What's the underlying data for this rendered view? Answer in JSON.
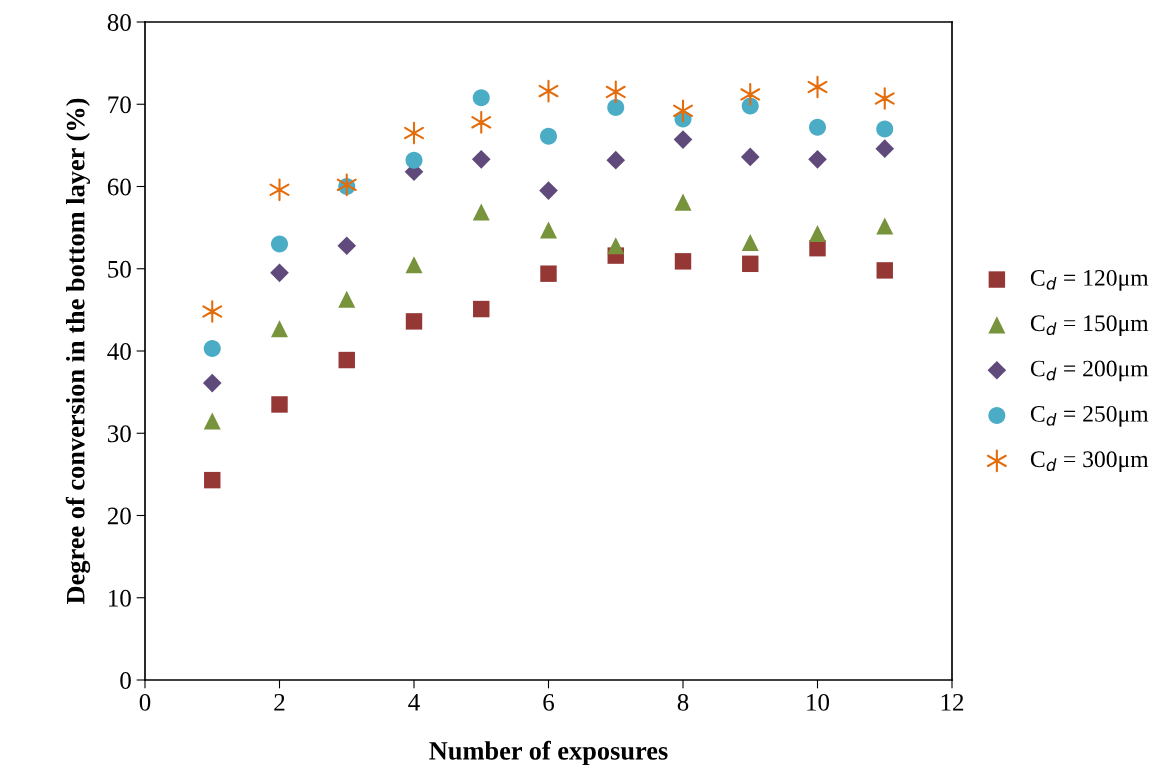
{
  "chart_data": {
    "type": "scatter",
    "xlabel": "Number of exposures",
    "ylabel": "Degree of conversion in the bottom layer (%)",
    "x": [
      1,
      2,
      3,
      4,
      5,
      6,
      7,
      8,
      9,
      10,
      11
    ],
    "xlim": [
      0,
      12
    ],
    "xticks": [
      0,
      2,
      4,
      6,
      8,
      10,
      12
    ],
    "ylim": [
      0,
      80
    ],
    "yticks": [
      0,
      10,
      20,
      30,
      40,
      50,
      60,
      70,
      80
    ],
    "grid": false,
    "legend": "right",
    "series": [
      {
        "name": "C$_{d}$ = 120μm",
        "color": "#953735",
        "marker": "square",
        "values": [
          24.3,
          33.5,
          38.9,
          43.6,
          45.1,
          49.4,
          51.6,
          50.9,
          50.6,
          52.5,
          49.8
        ]
      },
      {
        "name": "C$_{d}$ = 150μm",
        "color": "#77933c",
        "marker": "triangle",
        "values": [
          31.5,
          42.7,
          46.3,
          50.5,
          56.9,
          54.7,
          52.8,
          58.1,
          53.2,
          54.3,
          55.2
        ]
      },
      {
        "name": "C$_{d}$ = 200μm",
        "color": "#604a7b",
        "marker": "diamond",
        "values": [
          36.1,
          49.5,
          52.8,
          61.8,
          63.3,
          59.5,
          63.2,
          65.7,
          63.6,
          63.3,
          64.6
        ]
      },
      {
        "name": "C$_{d}$ = 250μm",
        "color": "#4bacc6",
        "marker": "circle",
        "values": [
          40.3,
          53.0,
          60.0,
          63.2,
          70.8,
          66.1,
          69.6,
          68.2,
          69.8,
          67.2,
          67.0
        ]
      },
      {
        "name": "C$_{d}$ = 300μm",
        "color": "#e46c0a",
        "marker": "cross",
        "values": [
          44.8,
          59.6,
          60.2,
          66.5,
          67.8,
          71.6,
          71.5,
          69.2,
          71.2,
          72.1,
          70.7
        ]
      }
    ]
  }
}
